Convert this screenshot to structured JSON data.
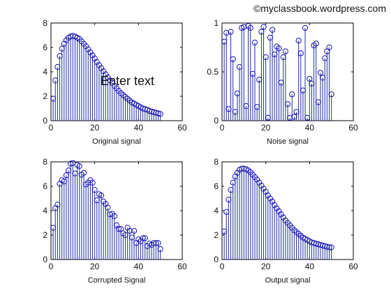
{
  "watermark": "©myclassbook.wordpress.com",
  "chart_data": [
    {
      "type": "stem",
      "title": "",
      "xlabel": "Original signal",
      "ylabel": "",
      "xlim": [
        0,
        60
      ],
      "ylim": [
        0,
        8
      ],
      "xticks": [
        0,
        20,
        40,
        60
      ],
      "yticks": [
        0,
        2,
        4,
        6,
        8
      ],
      "ytick_labels": [
        "0",
        "2",
        "4",
        "6",
        "8"
      ],
      "grid": false,
      "annotation": "Enter text",
      "series": [
        {
          "x": [
            1,
            2,
            3,
            4,
            5,
            6,
            7,
            8,
            9,
            10,
            11,
            12,
            13,
            14,
            15,
            16,
            17,
            18,
            19,
            20,
            21,
            22,
            23,
            24,
            25,
            26,
            27,
            28,
            29,
            30,
            31,
            32,
            33,
            34,
            35,
            36,
            37,
            38,
            39,
            40,
            41,
            42,
            43,
            44,
            45,
            46,
            47,
            48,
            49,
            50
          ],
          "y": [
            1.8,
            3.3,
            4.4,
            5.3,
            5.9,
            6.3,
            6.6,
            6.8,
            6.9,
            6.95,
            6.9,
            6.8,
            6.7,
            6.5,
            6.3,
            6.1,
            5.85,
            5.6,
            5.35,
            5.1,
            4.8,
            4.55,
            4.3,
            4.05,
            3.8,
            3.55,
            3.3,
            3.1,
            2.85,
            2.65,
            2.45,
            2.25,
            2.1,
            1.95,
            1.8,
            1.65,
            1.5,
            1.4,
            1.3,
            1.2,
            1.1,
            1.0,
            0.95,
            0.9,
            0.8,
            0.75,
            0.7,
            0.65,
            0.6,
            0.55
          ]
        }
      ]
    },
    {
      "type": "stem",
      "title": "",
      "xlabel": "Noise signal",
      "ylabel": "",
      "xlim": [
        0,
        60
      ],
      "ylim": [
        0,
        1
      ],
      "xticks": [
        0,
        20,
        40,
        60
      ],
      "yticks": [
        0,
        0.5,
        1
      ],
      "ytick_labels": [
        "0",
        "0.5",
        "1"
      ],
      "grid": false,
      "series": [
        {
          "x": [
            1,
            2,
            3,
            4,
            5,
            6,
            7,
            8,
            9,
            10,
            11,
            12,
            13,
            14,
            15,
            16,
            17,
            18,
            19,
            20,
            21,
            22,
            23,
            24,
            25,
            26,
            27,
            28,
            29,
            30,
            31,
            32,
            33,
            34,
            35,
            36,
            37,
            38,
            39,
            40,
            41,
            42,
            43,
            44,
            45,
            46,
            47,
            48,
            49,
            50
          ],
          "y": [
            0.81,
            0.9,
            0.12,
            0.91,
            0.63,
            0.09,
            0.28,
            0.55,
            0.95,
            0.96,
            0.15,
            0.97,
            0.95,
            0.48,
            0.8,
            0.14,
            0.42,
            0.91,
            0.96,
            0.65,
            0.03,
            0.85,
            0.93,
            0.68,
            0.76,
            0.74,
            0.39,
            0.65,
            0.71,
            0.17,
            0.03,
            0.27,
            0.04,
            0.09,
            0.82,
            0.69,
            0.31,
            0.95,
            0.03,
            0.43,
            0.38,
            0.77,
            0.79,
            0.19,
            0.49,
            0.44,
            0.64,
            0.71,
            0.75,
            0.27
          ]
        }
      ]
    },
    {
      "type": "stem",
      "title": "",
      "xlabel": "Corrupted Signal",
      "ylabel": "",
      "xlim": [
        0,
        60
      ],
      "ylim": [
        0,
        8
      ],
      "xticks": [
        0,
        20,
        40,
        60
      ],
      "yticks": [
        0,
        2,
        4,
        6,
        8
      ],
      "ytick_labels": [
        "0",
        "2",
        "4",
        "6",
        "8"
      ],
      "grid": false,
      "series": [
        {
          "x": [
            1,
            2,
            3,
            4,
            5,
            6,
            7,
            8,
            9,
            10,
            11,
            12,
            13,
            14,
            15,
            16,
            17,
            18,
            19,
            20,
            21,
            22,
            23,
            24,
            25,
            26,
            27,
            28,
            29,
            30,
            31,
            32,
            33,
            34,
            35,
            36,
            37,
            38,
            39,
            40,
            41,
            42,
            43,
            44,
            45,
            46,
            47,
            48,
            49,
            50
          ],
          "y": [
            2.6,
            4.2,
            4.5,
            6.2,
            6.5,
            6.4,
            6.9,
            7.3,
            7.85,
            7.9,
            7.05,
            7.75,
            7.65,
            6.95,
            7.1,
            6.15,
            6.3,
            6.5,
            6.3,
            5.7,
            4.85,
            5.35,
            5.25,
            4.75,
            4.55,
            4.25,
            3.7,
            3.75,
            3.55,
            2.8,
            2.5,
            2.5,
            2.15,
            2.0,
            2.6,
            2.35,
            1.8,
            2.35,
            1.35,
            1.65,
            1.5,
            1.75,
            1.75,
            1.1,
            1.3,
            1.2,
            1.35,
            1.35,
            1.35,
            0.85
          ]
        }
      ]
    },
    {
      "type": "stem",
      "title": "",
      "xlabel": "Output signal",
      "ylabel": "",
      "xlim": [
        0,
        60
      ],
      "ylim": [
        0,
        8
      ],
      "xticks": [
        0,
        20,
        40,
        60
      ],
      "yticks": [
        0,
        2,
        4,
        6,
        8
      ],
      "ytick_labels": [
        "0",
        "2",
        "4",
        "6",
        "8"
      ],
      "grid": false,
      "series": [
        {
          "x": [
            1,
            2,
            3,
            4,
            5,
            6,
            7,
            8,
            9,
            10,
            11,
            12,
            13,
            14,
            15,
            16,
            17,
            18,
            19,
            20,
            21,
            22,
            23,
            24,
            25,
            26,
            27,
            28,
            29,
            30,
            31,
            32,
            33,
            34,
            35,
            36,
            37,
            38,
            39,
            40,
            41,
            42,
            43,
            44,
            45,
            46,
            47,
            48,
            49,
            50
          ],
          "y": [
            2.3,
            3.9,
            4.9,
            5.7,
            6.3,
            6.8,
            7.1,
            7.35,
            7.45,
            7.45,
            7.4,
            7.3,
            7.15,
            6.95,
            6.75,
            6.55,
            6.3,
            6.05,
            5.8,
            5.55,
            5.25,
            5.0,
            4.75,
            4.45,
            4.2,
            3.95,
            3.7,
            3.45,
            3.2,
            3.0,
            2.8,
            2.6,
            2.4,
            2.25,
            2.1,
            1.95,
            1.8,
            1.7,
            1.6,
            1.5,
            1.4,
            1.35,
            1.3,
            1.25,
            1.2,
            1.15,
            1.1,
            1.05,
            1.0,
            1.0
          ]
        }
      ]
    }
  ]
}
